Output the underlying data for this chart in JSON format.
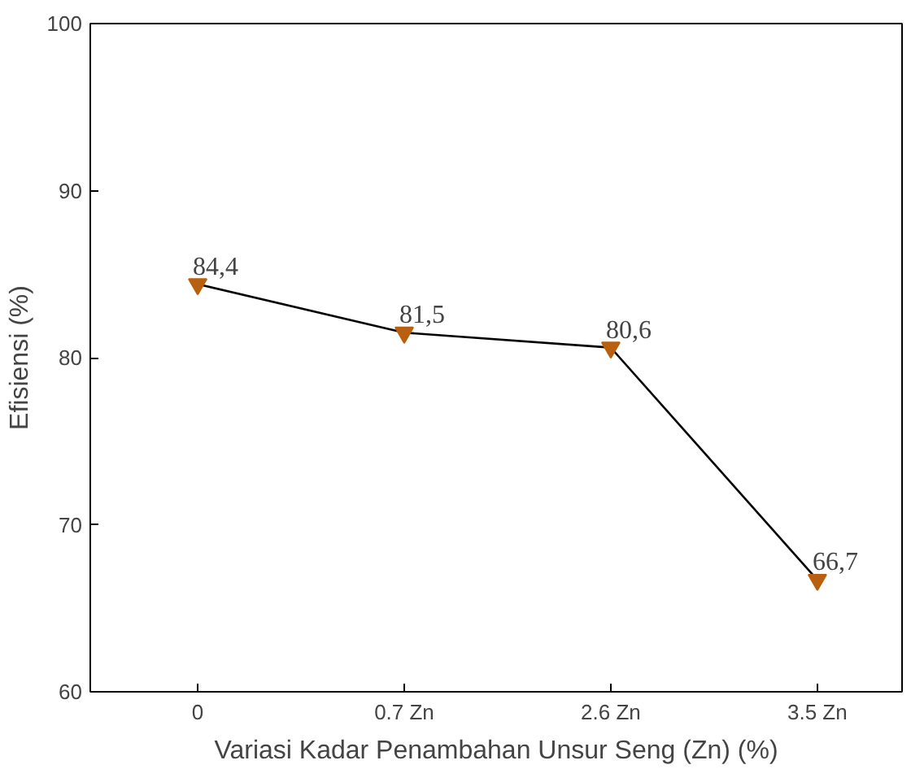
{
  "chart_data": {
    "type": "line",
    "xlabel": "Variasi Kadar Penambahan Unsur Seng (Zn) (%)",
    "ylabel": "Efisiensi (%)",
    "categories": [
      "0",
      "0.7 Zn",
      "2.6 Zn",
      "3.5 Zn"
    ],
    "series": [
      {
        "color": "#b8600f",
        "values": [
          84.4,
          81.5,
          80.6,
          66.7
        ],
        "value_labels": [
          "84,4",
          "81,5",
          "80,6",
          "66,7"
        ]
      }
    ],
    "ylim": [
      60,
      100
    ],
    "yticks": [
      60,
      70,
      80,
      90,
      100
    ],
    "grid": false,
    "marker": "triangle",
    "line_style": "solid"
  }
}
